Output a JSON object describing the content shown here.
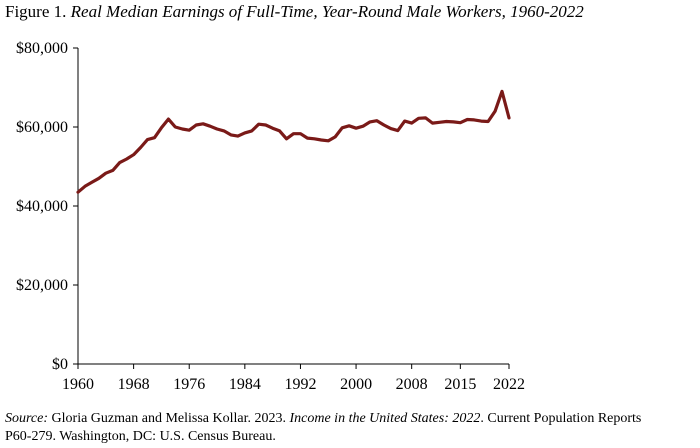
{
  "figure": {
    "label": "Figure 1.",
    "title": "Real Median Earnings of Full-Time, Year-Round Male Workers, 1960-2022"
  },
  "source": {
    "label": "Source:",
    "authors": "Gloria Guzman and Melissa Kollar. 2023.",
    "publication": "Income in the United States: 2022",
    "rest_line1": ". Current Population Reports",
    "line2": "P60-279. Washington, DC: U.S. Census Bureau."
  },
  "colors": {
    "line": "#7a1a18",
    "axis": "#000000"
  },
  "chart_data": {
    "type": "line",
    "title": "Real Median Earnings of Full-Time, Year-Round Male Workers, 1960-2022",
    "xlabel": "",
    "ylabel": "",
    "xlim": [
      1960,
      2022
    ],
    "ylim": [
      0,
      80000
    ],
    "x_ticks": [
      1960,
      1968,
      1976,
      1984,
      1992,
      2000,
      2008,
      2015,
      2022
    ],
    "x_tick_labels": [
      "1960",
      "1968",
      "1976",
      "1984",
      "1992",
      "2000",
      "2008",
      "2015",
      "2022"
    ],
    "y_ticks": [
      0,
      20000,
      40000,
      60000,
      80000
    ],
    "y_tick_labels": [
      "$0",
      "$20,000",
      "$40,000",
      "$60,000",
      "$80,000"
    ],
    "grid": false,
    "series": [
      {
        "x": [
          1960,
          1961,
          1962,
          1963,
          1964,
          1965,
          1966,
          1967,
          1968,
          1969,
          1970,
          1971,
          1972,
          1973,
          1974,
          1975,
          1976,
          1977,
          1978,
          1979,
          1980,
          1981,
          1982,
          1983,
          1984,
          1985,
          1986,
          1987,
          1988,
          1989,
          1990,
          1991,
          1992,
          1993,
          1994,
          1995,
          1996,
          1997,
          1998,
          1999,
          2000,
          2001,
          2002,
          2003,
          2004,
          2005,
          2006,
          2007,
          2008,
          2009,
          2010,
          2011,
          2012,
          2013,
          2014,
          2015,
          2016,
          2017,
          2018,
          2019,
          2020,
          2021,
          2022
        ],
        "values": [
          43500,
          45000,
          46000,
          47000,
          48300,
          49000,
          51000,
          51900,
          53000,
          54800,
          56800,
          57300,
          59800,
          62000,
          60000,
          59500,
          59200,
          60500,
          60800,
          60200,
          59500,
          59000,
          58000,
          57700,
          58500,
          59000,
          60700,
          60500,
          59700,
          59000,
          57000,
          58300,
          58300,
          57200,
          57000,
          56700,
          56500,
          57500,
          59800,
          60300,
          59700,
          60200,
          61300,
          61600,
          60500,
          59600,
          59100,
          61500,
          61000,
          62200,
          62300,
          61000,
          61200,
          61400,
          61300,
          61100,
          61900,
          61800,
          61500,
          61400,
          64000,
          69000,
          62300
        ]
      }
    ]
  }
}
